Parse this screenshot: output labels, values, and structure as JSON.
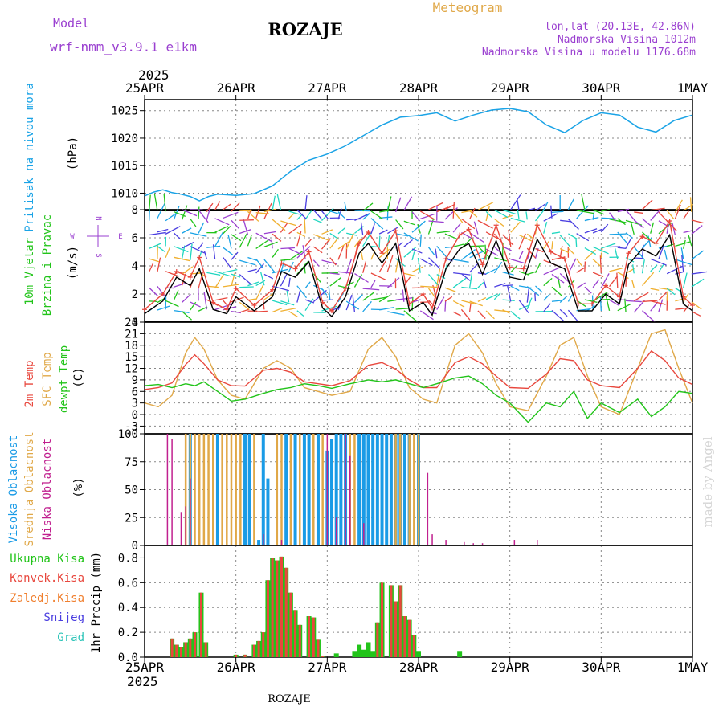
{
  "header": {
    "model_label": "Model",
    "model_name": "wrf-nmm_v3.9.1 e1km",
    "station": "ROZAJE",
    "product": "Meteogram",
    "lonlat": "lon,lat (20.13E, 42.86N)",
    "elevation": "Nadmorska Visina 1012m",
    "model_elevation": "Nadmorska Visina u modelu 1176.68m",
    "footer_station": "ROZAJE",
    "watermark": "made by Angel"
  },
  "time_axis": {
    "year": "2025",
    "ticks": [
      "25APR",
      "26APR",
      "27APR",
      "28APR",
      "29APR",
      "30APR",
      "1MAY"
    ]
  },
  "colors": {
    "pressure": "#1aa3e6",
    "wind_speed": "#000000",
    "wind_gust": "#e8473d",
    "temp_2m": "#e8473d",
    "temp_sfc": "#e0a848",
    "temp_dew": "#22c41a",
    "cloud_high": "#1a9be6",
    "cloud_mid": "#e0a848",
    "cloud_low": "#c0208f",
    "precip_total": "#22c41a",
    "precip_conv": "#e8473d",
    "compass": "#9a3fd0"
  },
  "chart_data": [
    {
      "type": "line",
      "panel": "pressure",
      "ylabel": [
        "Pritisak na nivou mora",
        "(hPa)"
      ],
      "ylim": [
        1007,
        1027
      ],
      "yticks": [
        1010,
        1015,
        1020,
        1025
      ],
      "x_days": [
        0,
        0.1,
        0.2,
        0.3,
        0.4,
        0.5,
        0.6,
        0.7,
        0.8,
        1.0,
        1.2,
        1.4,
        1.6,
        1.8,
        2.0,
        2.2,
        2.4,
        2.6,
        2.8,
        3.0,
        3.2,
        3.4,
        3.6,
        3.8,
        4.0,
        4.2,
        4.4,
        4.6,
        4.8,
        5.0,
        5.2,
        5.4,
        5.6,
        5.8,
        6.0
      ],
      "series": [
        {
          "name": "",
          "values": [
            1009.5,
            1010.2,
            1010.6,
            1010.1,
            1009.8,
            1009.4,
            1008.6,
            1009.4,
            1009.8,
            1009.6,
            1009.9,
            1011.3,
            1014.0,
            1016.0,
            1017.1,
            1018.6,
            1020.5,
            1022.4,
            1023.8,
            1024.1,
            1024.6,
            1023.1,
            1024.2,
            1025.1,
            1025.4,
            1024.8,
            1022.4,
            1021.0,
            1023.2,
            1024.6,
            1024.2,
            1022.0,
            1021.1,
            1023.2,
            1024.2
          ]
        }
      ]
    },
    {
      "type": "line",
      "panel": "wind",
      "ylabel": [
        "10m Vjetar",
        "Brzina i Pravac",
        "(m/s)"
      ],
      "compass": [
        "N",
        "E",
        "W",
        "S"
      ],
      "ylim": [
        0,
        8
      ],
      "yticks": [
        0,
        2,
        4,
        6,
        8
      ],
      "x_days": [
        0,
        0.2,
        0.35,
        0.5,
        0.6,
        0.75,
        0.9,
        1.0,
        1.2,
        1.4,
        1.5,
        1.65,
        1.8,
        1.95,
        2.05,
        2.2,
        2.35,
        2.45,
        2.6,
        2.75,
        2.9,
        3.05,
        3.15,
        3.3,
        3.45,
        3.55,
        3.7,
        3.85,
        4.0,
        4.15,
        4.3,
        4.45,
        4.6,
        4.75,
        4.9,
        5.05,
        5.2,
        5.3,
        5.45,
        5.6,
        5.75,
        5.9,
        6.0
      ],
      "series": [
        {
          "name": "",
          "values": [
            0.6,
            1.5,
            3.2,
            2.6,
            3.8,
            0.9,
            0.6,
            1.8,
            0.8,
            1.8,
            3.6,
            3.2,
            4.3,
            1.0,
            0.4,
            1.8,
            4.9,
            5.6,
            4.2,
            5.6,
            0.8,
            1.4,
            0.5,
            3.8,
            5.2,
            5.6,
            3.4,
            5.8,
            3.2,
            3.0,
            5.9,
            4.2,
            3.8,
            0.8,
            0.8,
            2.0,
            1.3,
            4.1,
            5.2,
            4.7,
            6.2,
            1.3,
            0.8
          ]
        },
        {
          "name": "",
          "values": [
            0.9,
            2.0,
            3.6,
            3.2,
            4.6,
            1.4,
            0.9,
            2.4,
            1.2,
            2.3,
            4.2,
            3.8,
            5.0,
            1.4,
            0.8,
            2.4,
            5.6,
            6.4,
            4.9,
            6.5,
            1.3,
            2.0,
            1.0,
            4.5,
            6.2,
            6.6,
            4.1,
            6.9,
            3.9,
            3.8,
            6.9,
            5.0,
            4.5,
            1.3,
            1.3,
            2.6,
            1.8,
            4.9,
            6.1,
            5.6,
            7.2,
            1.8,
            1.2
          ]
        }
      ]
    },
    {
      "type": "line",
      "panel": "temperature",
      "ylabel": [
        "2m Temp",
        "SFC Temp",
        "dewpt Temp",
        "(C)"
      ],
      "ylim": [
        -5,
        24
      ],
      "yticks": [
        -3,
        0,
        3,
        6,
        9,
        12,
        15,
        18,
        21,
        24
      ],
      "x_days": [
        0,
        0.15,
        0.3,
        0.45,
        0.55,
        0.65,
        0.8,
        0.95,
        1.1,
        1.3,
        1.45,
        1.6,
        1.75,
        1.9,
        2.05,
        2.25,
        2.45,
        2.6,
        2.75,
        2.9,
        3.05,
        3.2,
        3.4,
        3.55,
        3.7,
        3.85,
        4.0,
        4.2,
        4.4,
        4.55,
        4.7,
        4.85,
        5.0,
        5.2,
        5.4,
        5.55,
        5.7,
        5.85,
        6.0
      ],
      "series": [
        {
          "name": "2m Temp",
          "values": [
            6.5,
            7.0,
            8.2,
            13.0,
            15.5,
            13.2,
            9.0,
            7.5,
            7.4,
            11.5,
            12.0,
            11.0,
            8.5,
            8.0,
            7.5,
            8.8,
            12.8,
            13.5,
            11.8,
            9.0,
            7.0,
            7.0,
            13.5,
            15.0,
            13.2,
            10.0,
            7.0,
            6.8,
            10.5,
            14.5,
            14.0,
            9.0,
            7.5,
            7.0,
            12.0,
            16.5,
            14.0,
            9.5,
            7.8
          ]
        },
        {
          "name": "SFC Temp",
          "values": [
            3.0,
            2.0,
            5.0,
            16.0,
            20.0,
            17.0,
            9.0,
            5.0,
            4.0,
            12.0,
            14.0,
            12.0,
            7.0,
            6.0,
            5.0,
            6.0,
            17.0,
            20.0,
            15.0,
            7.0,
            4.0,
            3.0,
            18.0,
            21.0,
            16.0,
            8.0,
            2.0,
            1.0,
            10.0,
            18.0,
            20.0,
            10.0,
            2.0,
            0.0,
            12.0,
            21.0,
            22.0,
            12.0,
            3.0
          ]
        },
        {
          "name": "dewpt Temp",
          "values": [
            7.5,
            7.8,
            7.0,
            8.0,
            7.5,
            8.5,
            6.0,
            3.5,
            4.0,
            5.5,
            6.5,
            7.0,
            8.0,
            7.5,
            6.8,
            8.0,
            9.0,
            8.5,
            9.0,
            8.0,
            7.0,
            8.0,
            9.5,
            10.0,
            8.0,
            5.0,
            3.0,
            -2.0,
            3.0,
            2.0,
            6.0,
            -1.0,
            3.0,
            0.5,
            4.0,
            -0.5,
            2.0,
            6.0,
            5.5
          ]
        }
      ]
    },
    {
      "type": "bar",
      "panel": "clouds",
      "ylabel": [
        "Visoka Oblacnost",
        "Srednja Oblacnost",
        "Niska Oblacnost",
        "(%)"
      ],
      "ylim": [
        0,
        100
      ],
      "yticks": [
        0,
        25,
        50,
        75,
        100
      ],
      "series": [
        {
          "name": "Visoka Oblacnost",
          "x_days": [
            0.5,
            0.8,
            1.1,
            1.15,
            1.25,
            1.3,
            1.35,
            1.55,
            1.65,
            1.75,
            1.8,
            1.9,
            2.0,
            2.05,
            2.1,
            2.15,
            2.2,
            2.35,
            2.4,
            2.45,
            2.5,
            2.55,
            2.6,
            2.65,
            2.7,
            2.75,
            2.8,
            2.85,
            2.9,
            3.0
          ],
          "values": [
            100,
            100,
            100,
            100,
            5,
            100,
            60,
            100,
            100,
            100,
            100,
            100,
            85,
            95,
            100,
            100,
            100,
            100,
            100,
            100,
            100,
            100,
            100,
            100,
            100,
            100,
            100,
            100,
            100,
            100
          ]
        },
        {
          "name": "Srednja Oblacnost",
          "x_days": [
            0.45,
            0.5,
            0.55,
            0.6,
            0.65,
            0.7,
            0.75,
            0.85,
            0.9,
            0.95,
            1.0,
            1.05,
            1.2,
            1.45,
            1.5,
            1.6,
            1.7,
            1.85,
            1.95,
            2.25,
            2.3,
            2.75,
            2.8,
            2.9,
            2.95,
            3.0
          ],
          "values": [
            100,
            100,
            100,
            100,
            100,
            100,
            100,
            100,
            100,
            100,
            100,
            100,
            100,
            100,
            100,
            100,
            100,
            100,
            100,
            100,
            100,
            100,
            100,
            100,
            100,
            100
          ]
        },
        {
          "name": "Niska Oblacnost",
          "x_days": [
            0.25,
            0.3,
            0.4,
            0.45,
            0.5,
            1.3,
            1.5,
            2.0,
            2.1,
            2.2,
            2.25,
            2.4,
            3.1,
            3.15,
            3.3,
            3.5,
            3.6,
            3.7,
            4.05,
            4.3
          ],
          "values": [
            100,
            95,
            30,
            35,
            60,
            10,
            5,
            100,
            25,
            100,
            80,
            20,
            65,
            10,
            5,
            3,
            2,
            2,
            5,
            5
          ]
        }
      ]
    },
    {
      "type": "bar",
      "panel": "precipitation",
      "ylabel": [
        "1hr Precip (mm)"
      ],
      "legend": [
        "Ukupna Kisa",
        "Konvek.Kisa",
        "Zaledj.Kisa",
        "Snijeg",
        "Grad"
      ],
      "ylim": [
        0,
        0.9
      ],
      "yticks": [
        0,
        0.2,
        0.4,
        0.6,
        0.8
      ],
      "x_days": [
        0.3,
        0.35,
        0.4,
        0.45,
        0.5,
        0.55,
        0.62,
        0.67,
        1.0,
        1.1,
        1.2,
        1.25,
        1.3,
        1.35,
        1.4,
        1.45,
        1.5,
        1.55,
        1.6,
        1.65,
        1.7,
        1.8,
        1.85,
        1.9,
        1.95,
        2.1,
        2.3,
        2.35,
        2.4,
        2.45,
        2.5,
        2.55,
        2.6,
        2.7,
        2.75,
        2.8,
        2.85,
        2.9,
        2.95,
        3.0,
        3.45
      ],
      "series": [
        {
          "name": "Ukupna Kisa",
          "values": [
            0.15,
            0.1,
            0.08,
            0.12,
            0.15,
            0.2,
            0.52,
            0.12,
            0.02,
            0.02,
            0.1,
            0.13,
            0.2,
            0.62,
            0.8,
            0.78,
            0.81,
            0.72,
            0.52,
            0.38,
            0.26,
            0.33,
            0.32,
            0.14,
            0.01,
            0.03,
            0.05,
            0.1,
            0.06,
            0.12,
            0.05,
            0.28,
            0.6,
            0.58,
            0.45,
            0.58,
            0.33,
            0.3,
            0.18,
            0.05,
            0.05
          ]
        },
        {
          "name": "Konvek.Kisa",
          "values": [
            0.15,
            0.1,
            0.08,
            0.12,
            0.15,
            0.2,
            0.52,
            0.12,
            0.02,
            0.02,
            0.1,
            0.13,
            0.2,
            0.62,
            0.8,
            0.78,
            0.81,
            0.72,
            0.52,
            0.38,
            0.26,
            0.33,
            0.32,
            0.14,
            0.01,
            0.0,
            0.0,
            0.0,
            0.0,
            0.0,
            0.0,
            0.28,
            0.6,
            0.58,
            0.45,
            0.58,
            0.33,
            0.3,
            0.18,
            0.0,
            0.0
          ]
        }
      ]
    }
  ]
}
